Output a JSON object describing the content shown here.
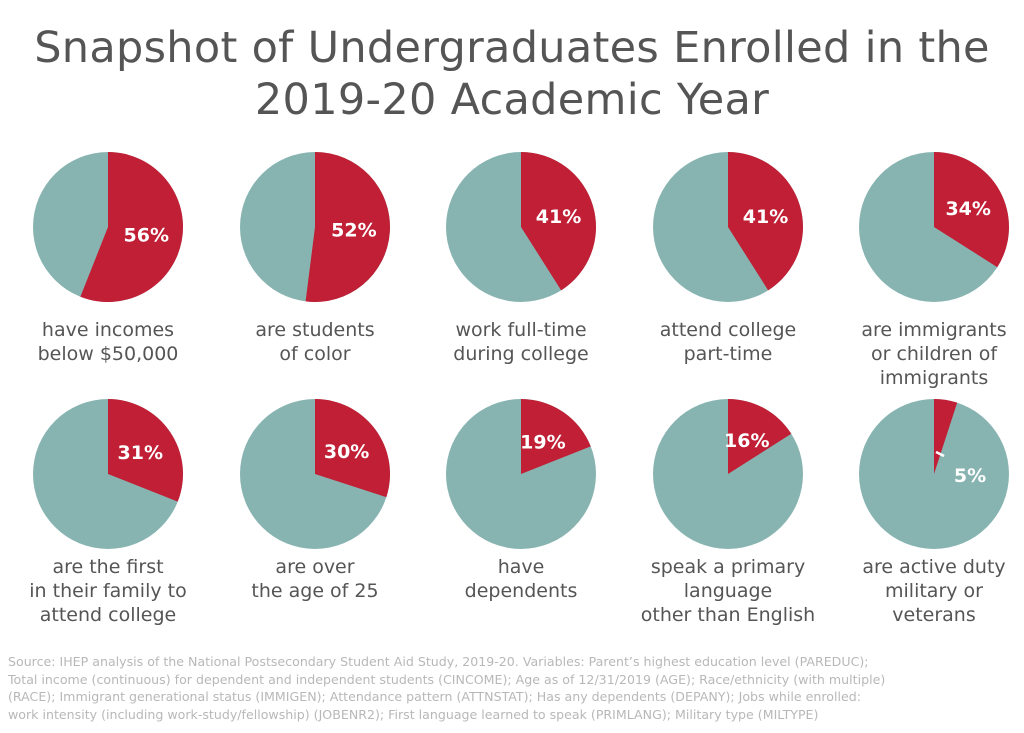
{
  "title": [
    "Snapshot of Undergraduates Enrolled in the",
    "2019-20 Academic Year"
  ],
  "colors": {
    "highlight": "#c01f35",
    "rest": "#87b4b1",
    "text": "#555555",
    "source": "#b8b8b8"
  },
  "chart_data": {
    "type": "pie",
    "unit": "%",
    "items": [
      {
        "value": 56,
        "label": "56%",
        "caption": [
          "have incomes",
          "below $50,000"
        ]
      },
      {
        "value": 52,
        "label": "52%",
        "caption": [
          "are students",
          "of color"
        ]
      },
      {
        "value": 41,
        "label": "41%",
        "caption": [
          "work full-time",
          "during college"
        ]
      },
      {
        "value": 41,
        "label": "41%",
        "caption": [
          "attend college",
          "part-time"
        ]
      },
      {
        "value": 34,
        "label": "34%",
        "caption": [
          "are immigrants",
          "or children of",
          "immigrants"
        ]
      },
      {
        "value": 31,
        "label": "31%",
        "caption": [
          "are the first",
          "in their family to",
          "attend college"
        ]
      },
      {
        "value": 30,
        "label": "30%",
        "caption": [
          "are over",
          "the age of 25"
        ]
      },
      {
        "value": 19,
        "label": "19%",
        "caption": [
          "have",
          "dependents"
        ]
      },
      {
        "value": 16,
        "label": "16%",
        "caption": [
          "speak a primary",
          "language",
          "other than English"
        ]
      },
      {
        "value": 5,
        "label": "5%",
        "caption": [
          "are active duty",
          "military or",
          "veterans"
        ]
      }
    ]
  },
  "source": [
    "Source: IHEP analysis of the National Postsecondary Student Aid Study, 2019-20. Variables: Parent’s highest education level (PAREDUC);",
    "Total income (continuous) for dependent and independent students (CINCOME); Age as of 12/31/2019 (AGE); Race/ethnicity (with multiple)",
    "(RACE); Immigrant generational status (IMMIGEN); Attendance pattern (ATTNSTAT); Has any dependents (DEPANY); Jobs while enrolled:",
    "work intensity (including work-study/fellowship) (JOBENR2); First language learned to speak (PRIMLANG); Military type (MILTYPE)"
  ]
}
